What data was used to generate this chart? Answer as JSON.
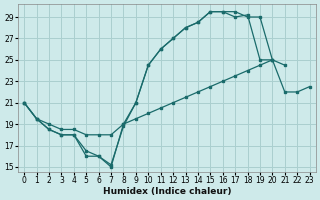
{
  "xlabel": "Humidex (Indice chaleur)",
  "xlim": [
    -0.5,
    23.5
  ],
  "ylim": [
    14.5,
    30.2
  ],
  "xticks": [
    0,
    1,
    2,
    3,
    4,
    5,
    6,
    7,
    8,
    9,
    10,
    11,
    12,
    13,
    14,
    15,
    16,
    17,
    18,
    19,
    20,
    21,
    22,
    23
  ],
  "yticks": [
    15,
    17,
    19,
    21,
    23,
    25,
    27,
    29
  ],
  "bg_color": "#ceeaea",
  "grid_color": "#aacfcf",
  "line_color": "#1a6b6b",
  "line1_y": [
    21,
    19.5,
    18.5,
    18,
    18,
    16,
    16,
    15,
    19,
    21,
    24.5,
    26,
    27,
    28,
    28.5,
    29.5,
    29.5,
    29.5,
    29,
    29,
    25,
    24.5,
    null,
    null
  ],
  "line2_y": [
    21,
    19.5,
    18.5,
    18,
    18,
    16.5,
    16,
    15.2,
    18.8,
    21,
    24.5,
    26,
    27,
    28,
    28.5,
    29.5,
    29.5,
    29,
    29.2,
    25,
    25,
    null,
    null,
    null
  ],
  "line3_y": [
    21,
    19.5,
    19,
    18.5,
    18.5,
    18,
    18,
    18,
    19,
    19.5,
    20,
    20.5,
    21,
    21.5,
    22,
    22.5,
    23,
    23.5,
    24,
    24.5,
    25,
    22,
    22,
    22.5
  ],
  "line1_x": [
    0,
    1,
    2,
    3,
    4,
    5,
    6,
    7,
    8,
    9,
    10,
    11,
    12,
    13,
    14,
    15,
    16,
    17,
    18,
    19,
    20,
    21,
    22,
    23
  ],
  "line2_x": [
    0,
    1,
    2,
    3,
    4,
    5,
    6,
    7,
    8,
    9,
    10,
    11,
    12,
    13,
    14,
    15,
    16,
    17,
    18,
    19,
    20,
    21,
    22,
    23
  ],
  "line3_x": [
    0,
    1,
    2,
    3,
    4,
    5,
    6,
    7,
    8,
    9,
    10,
    11,
    12,
    13,
    14,
    15,
    16,
    17,
    18,
    19,
    20,
    21,
    22,
    23
  ]
}
